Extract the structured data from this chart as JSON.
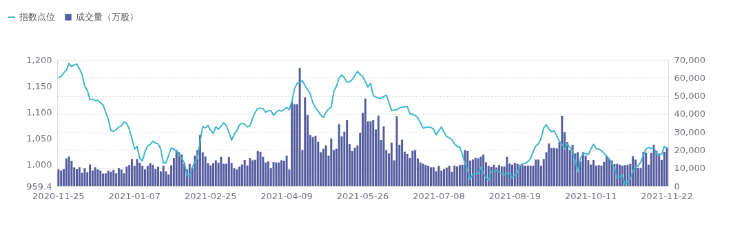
{
  "chart_data": {
    "type": "bar",
    "categories": [
      "2020-11-25",
      null,
      null,
      null,
      null,
      null,
      null,
      null,
      null,
      null,
      null,
      null,
      null,
      null,
      null,
      null,
      null,
      null,
      null,
      null,
      null,
      null,
      null,
      null,
      null,
      null,
      null,
      null,
      null,
      "2021-01-07",
      null,
      null,
      null,
      null,
      null,
      null,
      null,
      null,
      null,
      null,
      null,
      null,
      null,
      null,
      null,
      null,
      null,
      null,
      null,
      null,
      null,
      null,
      null,
      null,
      null,
      null,
      null,
      null,
      "2021-02-25",
      null,
      null,
      null,
      null,
      null,
      null,
      null,
      null,
      null,
      null,
      null,
      null,
      null,
      null,
      null,
      null,
      null,
      null,
      null,
      null,
      null,
      null,
      null,
      null,
      null,
      null,
      null,
      null,
      "2021-04-09",
      null,
      null,
      null,
      null,
      null,
      null,
      null,
      null,
      null,
      null,
      null,
      null,
      null,
      null,
      null,
      null,
      null,
      null,
      null,
      null,
      null,
      null,
      null,
      null,
      null,
      null,
      null,
      null,
      "2021-05-26",
      null,
      null,
      null,
      null,
      null,
      null,
      null,
      null,
      null,
      null,
      null,
      null,
      null,
      null,
      null,
      null,
      null,
      null,
      null,
      null,
      null,
      null,
      null,
      null,
      null,
      null,
      null,
      null,
      "2021-07-08",
      null,
      null,
      null,
      null,
      null,
      null,
      null,
      null,
      null,
      null,
      null,
      null,
      null,
      null,
      null,
      null,
      null,
      null,
      null,
      null,
      null,
      null,
      null,
      null,
      null,
      null,
      null,
      null,
      "2021-08-19",
      null,
      null,
      null,
      null,
      null,
      null,
      null,
      null,
      null,
      null,
      null,
      null,
      null,
      null,
      null,
      null,
      null,
      null,
      null,
      null,
      null,
      null,
      null,
      null,
      null,
      null,
      null,
      null,
      "2021-10-11",
      null,
      null,
      null,
      null,
      null,
      null,
      null,
      null,
      null,
      null,
      null,
      null,
      null,
      null,
      null,
      null,
      null,
      null,
      null,
      null,
      null,
      null,
      null,
      null,
      null,
      null,
      null,
      null,
      "2021-11-22"
    ],
    "series": [
      {
        "name": "指数点位",
        "type": "line",
        "color": "#3db5cc",
        "values": [
          1166,
          1168,
          1175,
          1180,
          1193,
          1187,
          1190,
          1192,
          1183,
          1172,
          1150,
          1142,
          1124,
          1125,
          1122,
          1123,
          1118,
          1114,
          1100,
          1087,
          1065,
          1064,
          1067,
          1072,
          1074,
          1082,
          1079,
          1068,
          1050,
          1030,
          1035,
          1012,
          1007,
          1025,
          1036,
          1039,
          1045,
          1041,
          1040,
          1030,
          1003,
          1004,
          1018,
          1032,
          1030,
          1025,
          1019,
          1012,
          1004,
          980,
          978,
          995,
          1005,
          1012,
          1045,
          1073,
          1070,
          1075,
          1066,
          1060,
          1072,
          1068,
          1073,
          1080,
          1075,
          1062,
          1047,
          1058,
          1065,
          1076,
          1079,
          1077,
          1072,
          1074,
          1088,
          1100,
          1107,
          1108,
          1107,
          1100,
          1103,
          1103,
          1094,
          1100,
          1104,
          1102,
          1105,
          1109,
          1105,
          1120,
          1145,
          1155,
          1157,
          1160,
          1151,
          1143,
          1135,
          1118,
          1108,
          1102,
          1095,
          1090,
          1100,
          1106,
          1110,
          1140,
          1150,
          1165,
          1171,
          1166,
          1157,
          1158,
          1162,
          1170,
          1178,
          1172,
          1168,
          1158,
          1148,
          1155,
          1132,
          1129,
          1127,
          1127,
          1130,
          1133,
          1118,
          1104,
          1104,
          1105,
          1108,
          1110,
          1110,
          1111,
          1097,
          1096,
          1094,
          1090,
          1080,
          1070,
          1071,
          1072,
          1071,
          1068,
          1057,
          1065,
          1072,
          1062,
          1054,
          1051,
          1048,
          1040,
          1035,
          1034,
          1020,
          1003,
          990,
          972,
          982,
          983,
          983,
          995,
          985,
          975,
          971,
          987,
          987,
          989,
          986,
          983,
          981,
          984,
          984,
          975,
          980,
          986,
          998,
          1002,
          1003,
          1006,
          1012,
          1025,
          1036,
          1040,
          1050,
          1070,
          1076,
          1068,
          1063,
          1065,
          1055,
          1045,
          1038,
          1030,
          1040,
          1033,
          1026,
          1008,
          986,
          1012,
          1021,
          1022,
          1019,
          1030,
          1039,
          1031,
          1030,
          1027,
          1022,
          1016,
          1011,
          1003,
          995,
          975,
          977,
          981,
          962,
          968,
          973,
          988,
          996,
          998,
          1005,
          1018,
          1030,
          1033,
          1031,
          1033,
          1020,
          1018,
          1020,
          1035,
          1031
        ]
      },
      {
        "name": "成交量（万股）",
        "axis": "y2",
        "color": "#545c9e",
        "values": [
          9300,
          8600,
          9500,
          15300,
          16500,
          14000,
          10500,
          9500,
          10500,
          7400,
          9900,
          7700,
          12000,
          8600,
          10500,
          9300,
          8600,
          7000,
          7100,
          8500,
          8000,
          9000,
          7100,
          9900,
          9300,
          7100,
          10800,
          11800,
          15000,
          11300,
          15000,
          13000,
          11200,
          9300,
          11200,
          12800,
          11800,
          9500,
          10800,
          8200,
          11200,
          8200,
          6500,
          11500,
          15600,
          20000,
          18800,
          17500,
          12400,
          9300,
          12300,
          9900,
          16900,
          20000,
          28300,
          18800,
          16500,
          12800,
          11500,
          12700,
          14300,
          13000,
          16200,
          12400,
          12400,
          16100,
          12800,
          9900,
          9300,
          10800,
          12000,
          14500,
          11500,
          15600,
          14300,
          14600,
          19400,
          19000,
          16200,
          13100,
          13700,
          9900,
          13300,
          13100,
          13100,
          14300,
          14100,
          16900,
          9300,
          47000,
          45400,
          45400,
          65400,
          20000,
          49200,
          39400,
          28300,
          27200,
          27900,
          24500,
          18800,
          20700,
          22600,
          16900,
          26400,
          20000,
          20700,
          34300,
          27600,
          30200,
          36500,
          23200,
          19400,
          21300,
          22600,
          29500,
          40600,
          48500,
          35900,
          35900,
          36500,
          31400,
          39000,
          25500,
          33100,
          20000,
          18100,
          24100,
          14300,
          38700,
          22900,
          25700,
          19100,
          17900,
          15600,
          19600,
          20000,
          15300,
          13100,
          12400,
          11800,
          11200,
          10500,
          10500,
          8200,
          11200,
          8600,
          9500,
          10300,
          11200,
          8000,
          11300,
          10900,
          11700,
          11900,
          20000,
          19400,
          14200,
          14700,
          15700,
          15400,
          16300,
          17500,
          13200,
          11300,
          10700,
          11900,
          10400,
          11700,
          10900,
          10900,
          16300,
          12500,
          11900,
          12900,
          12300,
          11900,
          11700,
          11300,
          11300,
          11300,
          11300,
          14700,
          14700,
          11300,
          15000,
          18800,
          23700,
          21200,
          21200,
          20900,
          24300,
          38900,
          29900,
          24300,
          20000,
          22900,
          18100,
          18800,
          13800,
          18800,
          16900,
          14400,
          11900,
          14400,
          11300,
          11700,
          11300,
          13400,
          16900,
          15000,
          14200,
          12200,
          12300,
          11900,
          11300,
          11600,
          11900,
          12300,
          16600,
          14700,
          10100,
          10100,
          19000,
          18400,
          11900,
          18400,
          22900,
          19400,
          18100,
          14500,
          19000,
          21500
        ]
      }
    ],
    "ylim": [
      959.4,
      1200
    ],
    "yticks": [
      959.4,
      {
        "value": 1000,
        "label": "1,000"
      },
      {
        "value": 1050,
        "label": "1,050"
      },
      {
        "value": 1100,
        "label": "1,100"
      },
      {
        "value": 1150,
        "label": "1,150"
      },
      {
        "value": 1200,
        "label": "1,200"
      }
    ],
    "y2lim": [
      0,
      70000
    ],
    "y2ticks": [
      0,
      {
        "value": 10000,
        "label": "10,000"
      },
      {
        "value": 20000,
        "label": "20,000"
      },
      {
        "value": 30000,
        "label": "30,000"
      },
      {
        "value": 40000,
        "label": "40,000"
      },
      {
        "value": 50000,
        "label": "50,000"
      },
      {
        "value": 60000,
        "label": "60,000"
      },
      {
        "value": 70000,
        "label": "70,000"
      }
    ],
    "grid": "y",
    "legend": "top left",
    "marker": "none",
    "line_style": "solid"
  }
}
